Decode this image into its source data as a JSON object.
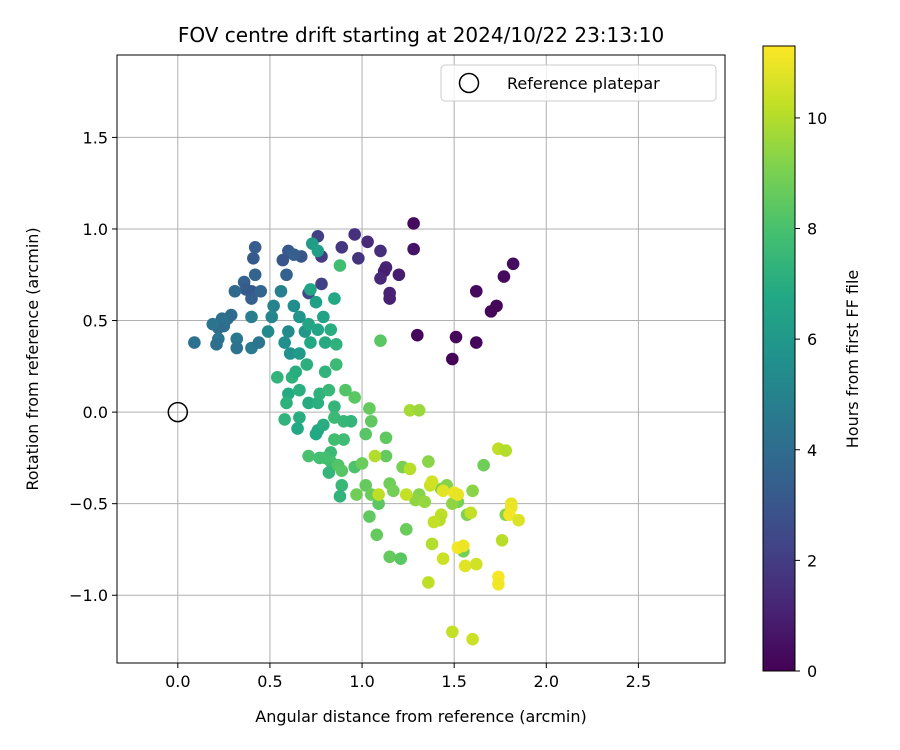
{
  "chart_data": {
    "type": "scatter",
    "title": "FOV centre drift starting at 2024/10/22 23:13:10",
    "xlabel": "Angular distance from reference (arcmin)",
    "ylabel": "Rotation from reference (arcmin)",
    "xlim": [
      -0.33,
      2.97
    ],
    "ylim": [
      -1.37,
      1.95
    ],
    "xticks": [
      0.0,
      0.5,
      1.0,
      1.5,
      2.0,
      2.5
    ],
    "xtick_labels": [
      "0.0",
      "0.5",
      "1.0",
      "1.5",
      "2.0",
      "2.5"
    ],
    "yticks": [
      -1.0,
      -0.5,
      0.0,
      0.5,
      1.0,
      1.5
    ],
    "ytick_labels": [
      "−1.0",
      "−0.5",
      "0.0",
      "0.5",
      "1.0",
      "1.5"
    ],
    "grid": true,
    "legend": {
      "position": "upper-right",
      "entries": [
        "Reference platepar"
      ]
    },
    "reference_point": {
      "x": 0.0,
      "y": 0.0,
      "marker": "open-circle"
    },
    "colorbar": {
      "label": "Hours from first FF file",
      "colormap": "viridis",
      "min": 0,
      "max": 11.3,
      "ticks": [
        0,
        2,
        4,
        6,
        8,
        10
      ],
      "tick_labels": [
        "0",
        "2",
        "4",
        "6",
        "8",
        "10"
      ]
    },
    "series": [
      {
        "color_by": "hours",
        "points": [
          {
            "x": 1.28,
            "y": 1.03,
            "c": 0.3
          },
          {
            "x": 1.28,
            "y": 0.89,
            "c": 0.6
          },
          {
            "x": 1.3,
            "y": 0.42,
            "c": 0.2
          },
          {
            "x": 1.51,
            "y": 0.41,
            "c": 0.2
          },
          {
            "x": 1.49,
            "y": 0.29,
            "c": 0.1
          },
          {
            "x": 1.62,
            "y": 0.38,
            "c": 0.2
          },
          {
            "x": 1.62,
            "y": 0.66,
            "c": 0.3
          },
          {
            "x": 1.7,
            "y": 0.55,
            "c": 0.2
          },
          {
            "x": 1.73,
            "y": 0.58,
            "c": 0.2
          },
          {
            "x": 1.77,
            "y": 0.74,
            "c": 0.3
          },
          {
            "x": 1.82,
            "y": 0.81,
            "c": 0.4
          },
          {
            "x": 1.15,
            "y": 0.62,
            "c": 1.0
          },
          {
            "x": 1.15,
            "y": 0.65,
            "c": 1.1
          },
          {
            "x": 1.13,
            "y": 0.79,
            "c": 1.2
          },
          {
            "x": 1.12,
            "y": 0.77,
            "c": 1.0
          },
          {
            "x": 1.2,
            "y": 0.75,
            "c": 0.9
          },
          {
            "x": 1.1,
            "y": 0.73,
            "c": 1.3
          },
          {
            "x": 1.1,
            "y": 0.88,
            "c": 1.5
          },
          {
            "x": 1.03,
            "y": 0.93,
            "c": 1.4
          },
          {
            "x": 0.96,
            "y": 0.97,
            "c": 1.6
          },
          {
            "x": 0.98,
            "y": 0.84,
            "c": 1.7
          },
          {
            "x": 0.89,
            "y": 0.9,
            "c": 1.8
          },
          {
            "x": 0.78,
            "y": 0.85,
            "c": 2.0
          },
          {
            "x": 0.76,
            "y": 0.96,
            "c": 2.1
          },
          {
            "x": 0.78,
            "y": 0.7,
            "c": 2.2
          },
          {
            "x": 0.71,
            "y": 0.65,
            "c": 2.5
          },
          {
            "x": 0.67,
            "y": 0.85,
            "c": 3.0
          },
          {
            "x": 0.6,
            "y": 0.88,
            "c": 3.2
          },
          {
            "x": 0.63,
            "y": 0.86,
            "c": 3.4
          },
          {
            "x": 0.57,
            "y": 0.83,
            "c": 3.0
          },
          {
            "x": 0.59,
            "y": 0.75,
            "c": 3.5
          },
          {
            "x": 0.42,
            "y": 0.9,
            "c": 3.3
          },
          {
            "x": 0.41,
            "y": 0.84,
            "c": 3.2
          },
          {
            "x": 0.42,
            "y": 0.75,
            "c": 3.6
          },
          {
            "x": 0.4,
            "y": 0.66,
            "c": 3.0
          },
          {
            "x": 0.4,
            "y": 0.62,
            "c": 3.4
          },
          {
            "x": 0.45,
            "y": 0.66,
            "c": 3.7
          },
          {
            "x": 0.36,
            "y": 0.71,
            "c": 3.5
          },
          {
            "x": 0.37,
            "y": 0.67,
            "c": 3.2
          },
          {
            "x": 0.31,
            "y": 0.66,
            "c": 3.8
          },
          {
            "x": 0.29,
            "y": 0.53,
            "c": 4.0
          },
          {
            "x": 0.27,
            "y": 0.51,
            "c": 3.9
          },
          {
            "x": 0.25,
            "y": 0.47,
            "c": 4.1
          },
          {
            "x": 0.24,
            "y": 0.51,
            "c": 4.2
          },
          {
            "x": 0.22,
            "y": 0.46,
            "c": 4.0
          },
          {
            "x": 0.19,
            "y": 0.48,
            "c": 4.3
          },
          {
            "x": 0.22,
            "y": 0.4,
            "c": 4.4
          },
          {
            "x": 0.21,
            "y": 0.37,
            "c": 4.1
          },
          {
            "x": 0.09,
            "y": 0.38,
            "c": 4.2
          },
          {
            "x": 0.32,
            "y": 0.4,
            "c": 4.5
          },
          {
            "x": 0.32,
            "y": 0.35,
            "c": 4.3
          },
          {
            "x": 0.4,
            "y": 0.35,
            "c": 4.6
          },
          {
            "x": 0.44,
            "y": 0.38,
            "c": 4.4
          },
          {
            "x": 0.4,
            "y": 0.52,
            "c": 4.8
          },
          {
            "x": 0.52,
            "y": 0.58,
            "c": 5.0
          },
          {
            "x": 0.56,
            "y": 0.66,
            "c": 4.9
          },
          {
            "x": 0.51,
            "y": 0.52,
            "c": 5.1
          },
          {
            "x": 0.49,
            "y": 0.44,
            "c": 5.3
          },
          {
            "x": 0.6,
            "y": 0.44,
            "c": 5.4
          },
          {
            "x": 0.63,
            "y": 0.58,
            "c": 5.5
          },
          {
            "x": 0.58,
            "y": 0.38,
            "c": 5.6
          },
          {
            "x": 0.61,
            "y": 0.32,
            "c": 5.7
          },
          {
            "x": 0.66,
            "y": 0.52,
            "c": 5.8
          },
          {
            "x": 0.69,
            "y": 0.44,
            "c": 6.0
          },
          {
            "x": 0.66,
            "y": 0.32,
            "c": 6.1
          },
          {
            "x": 0.73,
            "y": 0.92,
            "c": 6.2
          },
          {
            "x": 0.76,
            "y": 0.88,
            "c": 6.3
          },
          {
            "x": 0.75,
            "y": 0.6,
            "c": 6.4
          },
          {
            "x": 0.72,
            "y": 0.67,
            "c": 6.6
          },
          {
            "x": 0.85,
            "y": 0.62,
            "c": 6.8
          },
          {
            "x": 0.79,
            "y": 0.52,
            "c": 6.5
          },
          {
            "x": 0.71,
            "y": 0.48,
            "c": 6.6
          },
          {
            "x": 0.76,
            "y": 0.45,
            "c": 6.7
          },
          {
            "x": 0.83,
            "y": 0.45,
            "c": 7.0
          },
          {
            "x": 0.8,
            "y": 0.38,
            "c": 6.9
          },
          {
            "x": 0.72,
            "y": 0.38,
            "c": 6.8
          },
          {
            "x": 0.7,
            "y": 0.26,
            "c": 7.1
          },
          {
            "x": 0.62,
            "y": 0.19,
            "c": 7.2
          },
          {
            "x": 0.54,
            "y": 0.19,
            "c": 7.3
          },
          {
            "x": 0.6,
            "y": 0.1,
            "c": 6.9
          },
          {
            "x": 0.64,
            "y": 0.22,
            "c": 7.0
          },
          {
            "x": 0.66,
            "y": 0.12,
            "c": 7.1
          },
          {
            "x": 0.59,
            "y": 0.05,
            "c": 7.2
          },
          {
            "x": 0.58,
            "y": -0.04,
            "c": 7.3
          },
          {
            "x": 0.66,
            "y": -0.03,
            "c": 7.0
          },
          {
            "x": 0.65,
            "y": -0.09,
            "c": 6.8
          },
          {
            "x": 0.71,
            "y": 0.05,
            "c": 6.9
          },
          {
            "x": 0.76,
            "y": -0.1,
            "c": 6.7
          },
          {
            "x": 0.75,
            "y": -0.12,
            "c": 6.8
          },
          {
            "x": 0.79,
            "y": -0.07,
            "c": 7.0
          },
          {
            "x": 0.76,
            "y": 0.05,
            "c": 7.1
          },
          {
            "x": 0.77,
            "y": 0.1,
            "c": 7.2
          },
          {
            "x": 0.85,
            "y": 0.03,
            "c": 7.4
          },
          {
            "x": 0.82,
            "y": 0.12,
            "c": 7.5
          },
          {
            "x": 0.8,
            "y": 0.22,
            "c": 7.3
          },
          {
            "x": 0.86,
            "y": 0.26,
            "c": 7.6
          },
          {
            "x": 0.86,
            "y": 0.37,
            "c": 7.2
          },
          {
            "x": 0.88,
            "y": 0.8,
            "c": 7.8
          },
          {
            "x": 0.85,
            "y": -0.03,
            "c": 7.6
          },
          {
            "x": 0.9,
            "y": -0.05,
            "c": 7.5
          },
          {
            "x": 0.94,
            "y": -0.05,
            "c": 7.4
          },
          {
            "x": 0.9,
            "y": -0.15,
            "c": 7.7
          },
          {
            "x": 0.85,
            "y": -0.15,
            "c": 7.8
          },
          {
            "x": 0.83,
            "y": -0.22,
            "c": 7.6
          },
          {
            "x": 0.83,
            "y": -0.27,
            "c": 7.8
          },
          {
            "x": 0.8,
            "y": -0.25,
            "c": 7.9
          },
          {
            "x": 0.82,
            "y": -0.33,
            "c": 7.4
          },
          {
            "x": 0.71,
            "y": -0.24,
            "c": 8.0
          },
          {
            "x": 0.77,
            "y": -0.25,
            "c": 7.9
          },
          {
            "x": 0.89,
            "y": -0.4,
            "c": 7.5
          },
          {
            "x": 0.88,
            "y": -0.46,
            "c": 7.3
          },
          {
            "x": 0.87,
            "y": -0.29,
            "c": 8.2
          },
          {
            "x": 0.89,
            "y": -0.32,
            "c": 8.3
          },
          {
            "x": 0.96,
            "y": -0.3,
            "c": 8.1
          },
          {
            "x": 0.91,
            "y": 0.12,
            "c": 8.2
          },
          {
            "x": 0.96,
            "y": 0.08,
            "c": 8.4
          },
          {
            "x": 1.02,
            "y": -0.12,
            "c": 8.3
          },
          {
            "x": 1.05,
            "y": -0.05,
            "c": 8.5
          },
          {
            "x": 1.04,
            "y": 0.02,
            "c": 8.6
          },
          {
            "x": 1.1,
            "y": 0.39,
            "c": 8.4
          },
          {
            "x": 1.13,
            "y": -0.14,
            "c": 8.5
          },
          {
            "x": 1.13,
            "y": -0.24,
            "c": 8.6
          },
          {
            "x": 1.0,
            "y": -0.28,
            "c": 8.7
          },
          {
            "x": 0.97,
            "y": -0.45,
            "c": 8.8
          },
          {
            "x": 1.02,
            "y": -0.4,
            "c": 8.6
          },
          {
            "x": 1.05,
            "y": -0.45,
            "c": 8.7
          },
          {
            "x": 1.09,
            "y": -0.5,
            "c": 8.4
          },
          {
            "x": 1.04,
            "y": -0.57,
            "c": 8.5
          },
          {
            "x": 1.08,
            "y": -0.67,
            "c": 8.6
          },
          {
            "x": 1.15,
            "y": -0.39,
            "c": 8.8
          },
          {
            "x": 1.17,
            "y": -0.43,
            "c": 8.9
          },
          {
            "x": 1.22,
            "y": -0.3,
            "c": 9.0
          },
          {
            "x": 1.24,
            "y": -0.64,
            "c": 8.7
          },
          {
            "x": 1.15,
            "y": -0.79,
            "c": 8.6
          },
          {
            "x": 1.21,
            "y": -0.8,
            "c": 8.4
          },
          {
            "x": 1.31,
            "y": -0.45,
            "c": 9.2
          },
          {
            "x": 1.29,
            "y": -0.48,
            "c": 9.4
          },
          {
            "x": 1.34,
            "y": -0.49,
            "c": 9.5
          },
          {
            "x": 1.43,
            "y": -0.42,
            "c": 9.0
          },
          {
            "x": 1.46,
            "y": -0.4,
            "c": 9.2
          },
          {
            "x": 1.36,
            "y": -0.27,
            "c": 9.3
          },
          {
            "x": 1.52,
            "y": -0.49,
            "c": 9.0
          },
          {
            "x": 1.49,
            "y": -0.5,
            "c": 9.4
          },
          {
            "x": 1.57,
            "y": -0.56,
            "c": 9.1
          },
          {
            "x": 1.6,
            "y": -0.43,
            "c": 9.3
          },
          {
            "x": 1.55,
            "y": -0.76,
            "c": 8.9
          },
          {
            "x": 1.66,
            "y": -0.29,
            "c": 8.8
          },
          {
            "x": 1.78,
            "y": -0.56,
            "c": 9.2
          },
          {
            "x": 1.26,
            "y": 0.01,
            "c": 9.8
          },
          {
            "x": 1.31,
            "y": 0.01,
            "c": 9.6
          },
          {
            "x": 1.07,
            "y": -0.24,
            "c": 10.0
          },
          {
            "x": 1.09,
            "y": -0.45,
            "c": 10.2
          },
          {
            "x": 1.26,
            "y": -0.31,
            "c": 10.1
          },
          {
            "x": 1.24,
            "y": -0.45,
            "c": 10.3
          },
          {
            "x": 1.37,
            "y": -0.4,
            "c": 10.4
          },
          {
            "x": 1.38,
            "y": -0.38,
            "c": 10.5
          },
          {
            "x": 1.43,
            "y": -0.56,
            "c": 10.2
          },
          {
            "x": 1.42,
            "y": -0.59,
            "c": 10.1
          },
          {
            "x": 1.39,
            "y": -0.6,
            "c": 10.3
          },
          {
            "x": 1.38,
            "y": -0.72,
            "c": 10.0
          },
          {
            "x": 1.36,
            "y": -0.93,
            "c": 10.2
          },
          {
            "x": 1.44,
            "y": -0.8,
            "c": 10.4
          },
          {
            "x": 1.44,
            "y": -0.43,
            "c": 10.8
          },
          {
            "x": 1.5,
            "y": -0.44,
            "c": 11.0
          },
          {
            "x": 1.52,
            "y": -0.45,
            "c": 10.9
          },
          {
            "x": 1.52,
            "y": -0.74,
            "c": 11.1
          },
          {
            "x": 1.55,
            "y": -0.73,
            "c": 11.0
          },
          {
            "x": 1.56,
            "y": -0.84,
            "c": 10.8
          },
          {
            "x": 1.59,
            "y": -0.55,
            "c": 10.3
          },
          {
            "x": 1.62,
            "y": -0.83,
            "c": 10.5
          },
          {
            "x": 1.49,
            "y": -1.2,
            "c": 10.3
          },
          {
            "x": 1.6,
            "y": -1.24,
            "c": 10.4
          },
          {
            "x": 1.74,
            "y": -0.2,
            "c": 10.2
          },
          {
            "x": 1.78,
            "y": -0.21,
            "c": 10.0
          },
          {
            "x": 1.76,
            "y": -0.7,
            "c": 10.1
          },
          {
            "x": 1.81,
            "y": -0.5,
            "c": 10.9
          },
          {
            "x": 1.81,
            "y": -0.52,
            "c": 11.0
          },
          {
            "x": 1.8,
            "y": -0.56,
            "c": 11.1
          },
          {
            "x": 1.85,
            "y": -0.59,
            "c": 10.7
          },
          {
            "x": 1.74,
            "y": -0.9,
            "c": 11.2
          },
          {
            "x": 1.74,
            "y": -0.94,
            "c": 11.1
          }
        ]
      }
    ]
  }
}
